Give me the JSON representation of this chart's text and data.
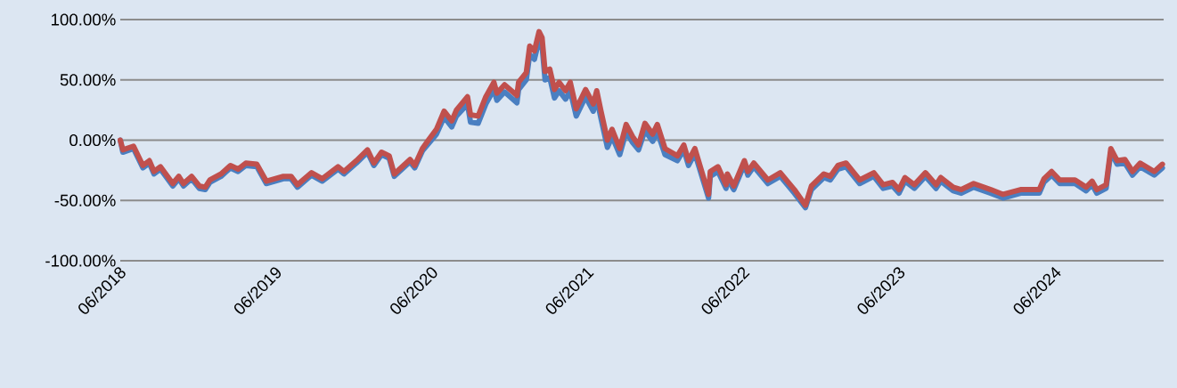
{
  "chart_data": {
    "type": "line",
    "grid": "y",
    "x": [
      "2018-06-01",
      "2018-06-07",
      "2018-07-02",
      "2018-07-24",
      "2018-08-08",
      "2018-08-19",
      "2018-09-03",
      "2018-10-02",
      "2018-10-16",
      "2018-10-27",
      "2018-11-15",
      "2018-12-03",
      "2018-12-17",
      "2018-12-28",
      "2019-01-23",
      "2019-02-14",
      "2019-03-04",
      "2019-03-22",
      "2019-04-17",
      "2019-05-09",
      "2019-06-18",
      "2019-07-06",
      "2019-07-21",
      "2019-08-23",
      "2019-09-17",
      "2019-10-24",
      "2019-11-07",
      "2019-12-06",
      "2020-01-01",
      "2020-01-16",
      "2020-02-03",
      "2020-02-21",
      "2020-03-04",
      "2020-04-10",
      "2020-04-21",
      "2020-05-09",
      "2020-05-23",
      "2020-06-11",
      "2020-06-29",
      "2020-07-17",
      "2020-07-28",
      "2020-08-23",
      "2020-08-30",
      "2020-09-17",
      "2020-10-05",
      "2020-10-24",
      "2020-10-31",
      "2020-11-18",
      "2020-12-17",
      "2020-12-21",
      "2021-01-08",
      "2021-01-16",
      "2021-01-27",
      "2021-02-07",
      "2021-02-14",
      "2021-02-21",
      "2021-03-04",
      "2021-03-15",
      "2021-03-26",
      "2021-04-10",
      "2021-04-21",
      "2021-05-05",
      "2021-05-27",
      "2021-06-14",
      "2021-06-22",
      "2021-07-02",
      "2021-07-17",
      "2021-07-28",
      "2021-08-15",
      "2021-08-30",
      "2021-09-14",
      "2021-09-28",
      "2021-10-13",
      "2021-10-31",
      "2021-11-11",
      "2021-11-29",
      "2021-12-28",
      "2022-01-12",
      "2022-01-23",
      "2022-02-07",
      "2022-03-11",
      "2022-03-15",
      "2022-04-02",
      "2022-04-21",
      "2022-04-24",
      "2022-05-09",
      "2022-06-03",
      "2022-06-11",
      "2022-06-25",
      "2022-07-28",
      "2022-08-26",
      "2022-09-28",
      "2022-10-24",
      "2022-11-07",
      "2022-12-06",
      "2022-12-21",
      "2023-01-08",
      "2023-01-27",
      "2023-02-28",
      "2023-04-02",
      "2023-04-24",
      "2023-05-16",
      "2023-05-31",
      "2023-06-14",
      "2023-07-06",
      "2023-08-01",
      "2023-08-26",
      "2023-09-06",
      "2023-10-05",
      "2023-10-24",
      "2023-11-22",
      "2024-01-01",
      "2024-01-30",
      "2024-03-11",
      "2024-04-24",
      "2024-05-05",
      "2024-05-23",
      "2024-06-11",
      "2024-07-17",
      "2024-08-12",
      "2024-08-26",
      "2024-09-06",
      "2024-09-28",
      "2024-10-09",
      "2024-10-24",
      "2024-11-11",
      "2024-11-29",
      "2024-12-17",
      "2025-01-19",
      "2025-02-07"
    ],
    "series": [
      {
        "color": "#4a7fc1",
        "values": [
          0,
          -10,
          -7,
          -23,
          -19,
          -28,
          -24,
          -38,
          -32,
          -38,
          -32,
          -40,
          -41,
          -35,
          -30,
          -23,
          -26,
          -21,
          -22,
          -36,
          -32,
          -32,
          -39,
          -29,
          -34,
          -24,
          -28,
          -19,
          -10,
          -21,
          -12,
          -15,
          -30,
          -18,
          -23,
          -9,
          -3,
          5,
          19,
          11,
          20,
          30,
          15,
          14,
          30,
          42,
          33,
          40,
          31,
          42,
          50,
          71,
          67,
          83,
          78,
          50,
          52,
          35,
          41,
          34,
          41,
          20,
          36,
          24,
          35,
          18,
          -6,
          3,
          -12,
          7,
          -2,
          -8,
          8,
          -1,
          7,
          -12,
          -17,
          -8,
          -21,
          -11,
          -48,
          -30,
          -26,
          -40,
          -32,
          -41,
          -20,
          -29,
          -22,
          -36,
          -30,
          -44,
          -56,
          -41,
          -31,
          -33,
          -24,
          -22,
          -36,
          -30,
          -40,
          -38,
          -44,
          -34,
          -40,
          -30,
          -40,
          -34,
          -42,
          -44,
          -39,
          -44,
          -48,
          -44,
          -44,
          -35,
          -29,
          -36,
          -36,
          -42,
          -37,
          -44,
          -40,
          -10,
          -20,
          -19,
          -29,
          -22,
          -29,
          -23
        ]
      },
      {
        "color": "#c0504d",
        "values": [
          0,
          -8,
          -5,
          -21,
          -17,
          -26,
          -22,
          -36,
          -30,
          -36,
          -30,
          -38,
          -39,
          -33,
          -28,
          -21,
          -24,
          -19,
          -20,
          -34,
          -30,
          -30,
          -37,
          -27,
          -32,
          -22,
          -26,
          -17,
          -8,
          -19,
          -10,
          -13,
          -28,
          -16,
          -21,
          -7,
          0,
          9,
          24,
          16,
          25,
          36,
          21,
          20,
          36,
          48,
          39,
          46,
          37,
          48,
          56,
          78,
          74,
          90,
          85,
          57,
          59,
          42,
          48,
          41,
          48,
          26,
          42,
          30,
          41,
          24,
          0,
          9,
          -7,
          13,
          3,
          -4,
          14,
          5,
          13,
          -7,
          -13,
          -4,
          -17,
          -7,
          -45,
          -26,
          -22,
          -37,
          -28,
          -38,
          -17,
          -26,
          -19,
          -33,
          -27,
          -41,
          -54,
          -38,
          -28,
          -30,
          -21,
          -19,
          -33,
          -27,
          -37,
          -35,
          -41,
          -31,
          -37,
          -27,
          -37,
          -31,
          -39,
          -41,
          -36,
          -41,
          -45,
          -41,
          -41,
          -32,
          -26,
          -33,
          -33,
          -39,
          -34,
          -41,
          -37,
          -7,
          -17,
          -16,
          -26,
          -19,
          -26,
          -20
        ]
      }
    ],
    "xlim": [
      "2018-06-01",
      "2025-02-10"
    ],
    "xticks": [
      {
        "value": "2018-06",
        "label": "06/2018"
      },
      {
        "value": "2019-06",
        "label": "06/2019"
      },
      {
        "value": "2020-06",
        "label": "06/2020"
      },
      {
        "value": "2021-06",
        "label": "06/2021"
      },
      {
        "value": "2022-06",
        "label": "06/2022"
      },
      {
        "value": "2023-06",
        "label": "06/2023"
      },
      {
        "value": "2024-06",
        "label": "06/2024"
      }
    ],
    "ylim": [
      -100,
      100
    ],
    "yticks": [
      {
        "value": -100,
        "label": "-100.00%"
      },
      {
        "value": -50,
        "label": "-50.00%"
      },
      {
        "value": 0,
        "label": "0.00%"
      },
      {
        "value": 50,
        "label": "50.00%"
      },
      {
        "value": 100,
        "label": "100.00%"
      }
    ]
  }
}
